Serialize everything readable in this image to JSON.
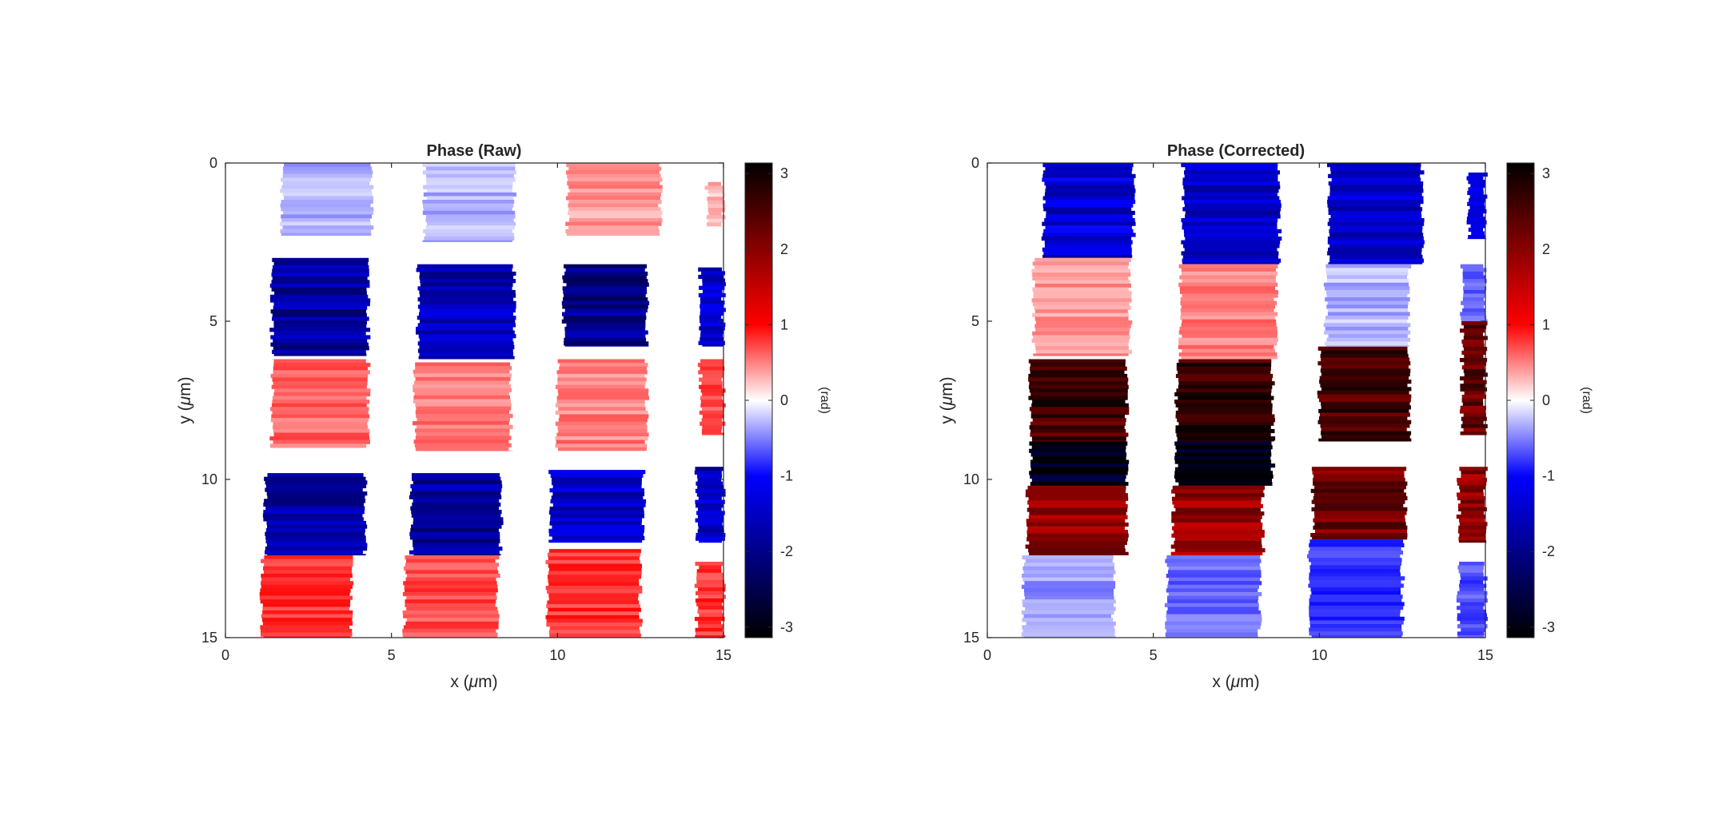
{
  "chart_data": [
    {
      "type": "heatmap",
      "title": "Phase (Raw)",
      "xlabel": "x (μm)",
      "ylabel": "y (μm)",
      "xlim": [
        0,
        15
      ],
      "ylim": [
        15,
        0
      ],
      "xticks": [
        "0",
        "5",
        "10",
        "15"
      ],
      "yticks": [
        "0",
        "5",
        "10",
        "15"
      ],
      "colorbar": {
        "label": "(rad)",
        "range": [
          -3.14,
          3.14
        ],
        "ticks": [
          "3",
          "2",
          "1",
          "0",
          "-1",
          "-2",
          "-3"
        ],
        "colormap": "blue-white-red-black"
      },
      "regions": [
        {
          "x": [
            1.7,
            4.4
          ],
          "y": [
            0.0,
            2.3
          ],
          "phase": -0.3
        },
        {
          "x": [
            1.4,
            4.3
          ],
          "y": [
            3.0,
            6.1
          ],
          "phase": -1.8
        },
        {
          "x": [
            1.4,
            4.3
          ],
          "y": [
            6.2,
            9.0
          ],
          "phase": 0.6
        },
        {
          "x": [
            1.2,
            4.2
          ],
          "y": [
            9.8,
            12.4
          ],
          "phase": -1.8
        },
        {
          "x": [
            1.1,
            3.8
          ],
          "y": [
            12.4,
            15.0
          ],
          "phase": 0.8
        },
        {
          "x": [
            6.0,
            8.7
          ],
          "y": [
            0.0,
            2.5
          ],
          "phase": -0.3
        },
        {
          "x": [
            5.8,
            8.7
          ],
          "y": [
            3.2,
            6.2
          ],
          "phase": -1.6
        },
        {
          "x": [
            5.7,
            8.6
          ],
          "y": [
            6.3,
            9.1
          ],
          "phase": 0.5
        },
        {
          "x": [
            5.6,
            8.3
          ],
          "y": [
            9.8,
            12.4
          ],
          "phase": -1.9
        },
        {
          "x": [
            5.4,
            8.2
          ],
          "y": [
            12.4,
            15.0
          ],
          "phase": 0.7
        },
        {
          "x": [
            10.3,
            13.1
          ],
          "y": [
            0.0,
            2.3
          ],
          "phase": 0.4
        },
        {
          "x": [
            10.2,
            12.7
          ],
          "y": [
            3.2,
            5.8
          ],
          "phase": -2.0
        },
        {
          "x": [
            10.0,
            12.7
          ],
          "y": [
            6.2,
            9.1
          ],
          "phase": 0.5
        },
        {
          "x": [
            9.8,
            12.6
          ],
          "y": [
            9.7,
            12.0
          ],
          "phase": -1.5
        },
        {
          "x": [
            9.7,
            12.5
          ],
          "y": [
            12.2,
            15.0
          ],
          "phase": 0.8
        },
        {
          "x": [
            14.5,
            15.0
          ],
          "y": [
            0.6,
            2.0
          ],
          "phase": 0.3
        },
        {
          "x": [
            14.3,
            15.0
          ],
          "y": [
            3.3,
            5.8
          ],
          "phase": -1.4
        },
        {
          "x": [
            14.3,
            15.0
          ],
          "y": [
            6.2,
            8.6
          ],
          "phase": 0.7
        },
        {
          "x": [
            14.2,
            15.0
          ],
          "y": [
            9.6,
            12.0
          ],
          "phase": -1.6
        },
        {
          "x": [
            14.2,
            15.0
          ],
          "y": [
            12.6,
            15.0
          ],
          "phase": 0.8
        }
      ]
    },
    {
      "type": "heatmap",
      "title": "Phase (Corrected)",
      "xlabel": "x (μm)",
      "ylabel": "y (μm)",
      "xlim": [
        0,
        15
      ],
      "ylim": [
        15,
        0
      ],
      "xticks": [
        "0",
        "5",
        "10",
        "15"
      ],
      "yticks": [
        "0",
        "5",
        "10",
        "15"
      ],
      "colorbar": {
        "label": "(rad)",
        "range": [
          -3.14,
          3.14
        ],
        "ticks": [
          "3",
          "2",
          "1",
          "0",
          "-1",
          "-2",
          "-3"
        ],
        "colormap": "blue-white-red-black"
      },
      "regions": [
        {
          "x": [
            1.7,
            4.4
          ],
          "y": [
            0.0,
            3.0
          ],
          "phase": -1.4
        },
        {
          "x": [
            1.4,
            4.3
          ],
          "y": [
            3.0,
            6.1
          ],
          "phase": 0.4
        },
        {
          "x": [
            1.3,
            4.2
          ],
          "y": [
            6.2,
            8.8
          ],
          "phase": 2.6
        },
        {
          "x": [
            1.3,
            4.2
          ],
          "y": [
            8.8,
            10.2
          ],
          "phase": -3.0
        },
        {
          "x": [
            1.2,
            4.2
          ],
          "y": [
            10.2,
            12.4
          ],
          "phase": 1.9
        },
        {
          "x": [
            1.1,
            3.8
          ],
          "y": [
            12.4,
            15.0
          ],
          "phase": -0.4
        },
        {
          "x": [
            5.9,
            8.8
          ],
          "y": [
            0.0,
            3.2
          ],
          "phase": -1.5
        },
        {
          "x": [
            5.8,
            8.7
          ],
          "y": [
            3.2,
            6.2
          ],
          "phase": 0.5
        },
        {
          "x": [
            5.7,
            8.6
          ],
          "y": [
            6.2,
            8.8
          ],
          "phase": 2.7
        },
        {
          "x": [
            5.7,
            8.6
          ],
          "y": [
            8.8,
            10.2
          ],
          "phase": -3.0
        },
        {
          "x": [
            5.6,
            8.3
          ],
          "y": [
            10.2,
            12.4
          ],
          "phase": 1.9
        },
        {
          "x": [
            5.4,
            8.2
          ],
          "y": [
            12.4,
            15.0
          ],
          "phase": -0.6
        },
        {
          "x": [
            10.3,
            13.1
          ],
          "y": [
            0.0,
            3.2
          ],
          "phase": -1.4
        },
        {
          "x": [
            10.2,
            12.7
          ],
          "y": [
            3.2,
            5.8
          ],
          "phase": -0.3
        },
        {
          "x": [
            10.0,
            12.7
          ],
          "y": [
            5.8,
            8.8
          ],
          "phase": 2.6
        },
        {
          "x": [
            9.8,
            12.6
          ],
          "y": [
            9.6,
            11.9
          ],
          "phase": 2.2
        },
        {
          "x": [
            9.7,
            12.5
          ],
          "y": [
            11.9,
            15.0
          ],
          "phase": -0.8
        },
        {
          "x": [
            14.5,
            15.0
          ],
          "y": [
            0.3,
            2.4
          ],
          "phase": -1.2
        },
        {
          "x": [
            14.3,
            15.0
          ],
          "y": [
            3.2,
            5.0
          ],
          "phase": -0.6
        },
        {
          "x": [
            14.3,
            15.0
          ],
          "y": [
            5.0,
            8.6
          ],
          "phase": 2.3
        },
        {
          "x": [
            14.2,
            15.0
          ],
          "y": [
            9.6,
            12.0
          ],
          "phase": 2.0
        },
        {
          "x": [
            14.2,
            15.0
          ],
          "y": [
            12.6,
            15.0
          ],
          "phase": -0.7
        }
      ]
    }
  ]
}
